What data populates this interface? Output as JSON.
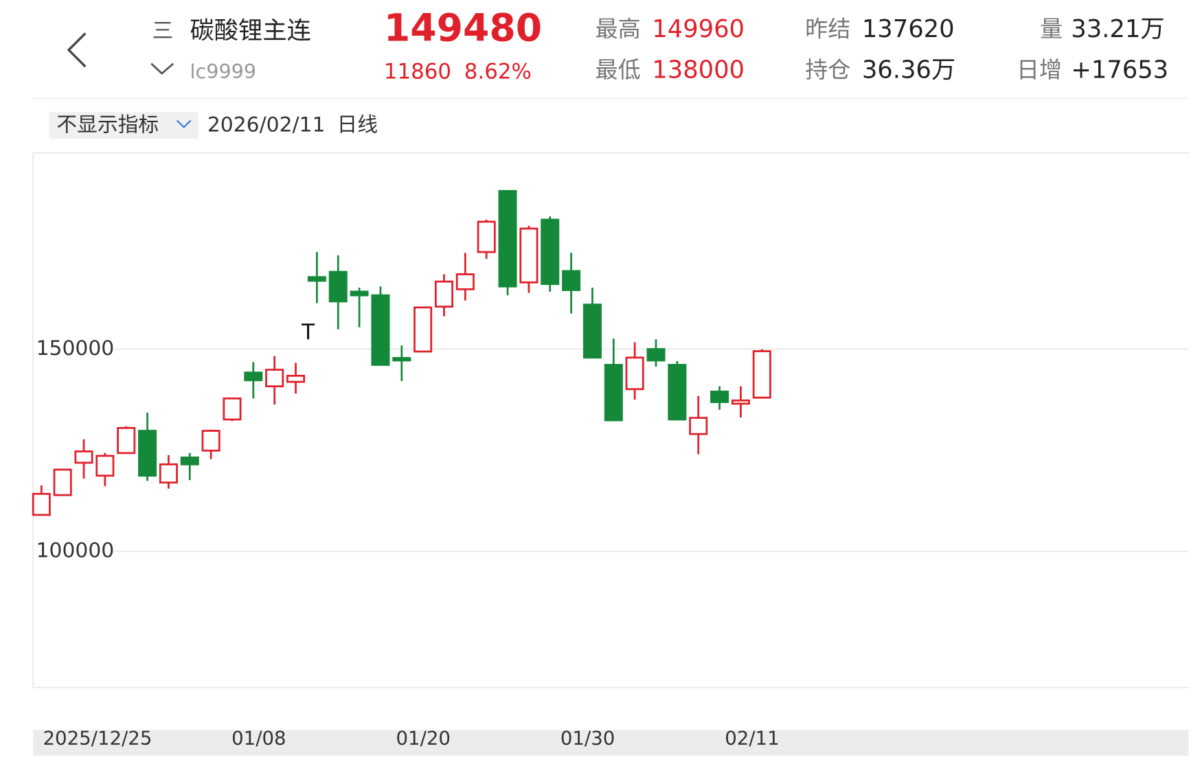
{
  "header": {
    "menu_icon": "三",
    "name": "碳酸锂主连",
    "code": "lc9999",
    "price": "149480",
    "change": "11860",
    "change_pct": "8.62%",
    "high_label": "最高",
    "high": "149960",
    "low_label": "最低",
    "low": "138000",
    "settle_label": "昨结",
    "settle": "137620",
    "oi_label": "持仓",
    "oi": "36.36万",
    "vol_label": "量",
    "vol": "33.21万",
    "inc_label": "日增",
    "inc": "+17653"
  },
  "toolbar": {
    "indicator": "不显示指标",
    "date": "2026/02/11",
    "period": "日线"
  },
  "chart_data": {
    "type": "candlestick",
    "open": [
      109000,
      113900,
      121900,
      118700,
      124300,
      129800,
      117000,
      123200,
      124900,
      132600,
      144200,
      140800,
      141900,
      167800,
      169100,
      164200,
      163300,
      147800,
      149400,
      160500,
      164800,
      174000,
      189100,
      166500,
      182000,
      169300,
      161000,
      146100,
      140100,
      150000,
      146100,
      129000,
      139500,
      136500,
      138000
    ],
    "high": [
      116300,
      120200,
      127700,
      124300,
      130900,
      134300,
      123800,
      124300,
      130100,
      137800,
      146800,
      148300,
      146600,
      174000,
      173200,
      165200,
      165500,
      150900,
      160300,
      168500,
      173800,
      182000,
      189100,
      180500,
      182800,
      173800,
      165200,
      152600,
      151700,
      152400,
      147000,
      138400,
      140800,
      140800,
      149960
    ],
    "low": [
      109000,
      113900,
      118000,
      116100,
      124300,
      117400,
      115500,
      117600,
      122800,
      132200,
      137800,
      136300,
      139000,
      161400,
      154900,
      155400,
      146100,
      142100,
      149400,
      158100,
      162000,
      172300,
      163300,
      163900,
      164200,
      158800,
      147900,
      132400,
      137500,
      145700,
      132400,
      124000,
      135000,
      133100,
      138000
    ],
    "close": [
      114200,
      120200,
      124700,
      123600,
      130500,
      118700,
      121500,
      121500,
      129800,
      137800,
      142300,
      144900,
      143400,
      166900,
      161800,
      163300,
      146100,
      147200,
      160300,
      166700,
      168500,
      181500,
      165500,
      179800,
      166100,
      164600,
      147900,
      132400,
      147900,
      147200,
      132600,
      133000,
      136900,
      137300,
      149480
    ],
    "up_color": "#e0202a",
    "down_color": "#15893a",
    "annotation": "T",
    "x_labels": [
      "2025/12/25",
      "01/08",
      "01/20",
      "01/30",
      "02/11"
    ],
    "ylim": [
      66300,
      198500
    ],
    "yticks": [
      100000,
      150000
    ],
    "grid": true
  }
}
